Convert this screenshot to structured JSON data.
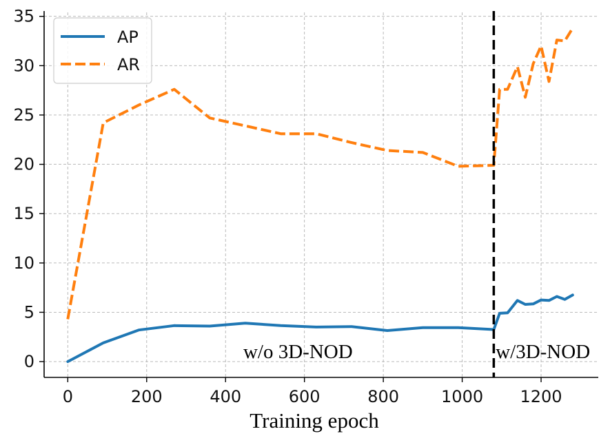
{
  "chart_data": {
    "type": "line",
    "title": "",
    "xlabel": "Training epoch",
    "ylabel": "",
    "xlim": [
      -60,
      1345
    ],
    "ylim": [
      -1.6,
      35.4
    ],
    "xticks": [
      0,
      200,
      400,
      600,
      800,
      1000,
      1200
    ],
    "yticks": [
      0,
      5,
      10,
      15,
      20,
      25,
      30,
      35
    ],
    "grid": true,
    "legend_position": "top-left",
    "series": [
      {
        "name": "AP",
        "style": "solid",
        "color": "#1f77b4",
        "x": [
          0,
          90,
          180,
          270,
          360,
          450,
          540,
          630,
          720,
          810,
          900,
          990,
          1080,
          1095,
          1115,
          1140,
          1160,
          1180,
          1200,
          1220,
          1240,
          1260,
          1280
        ],
        "y": [
          0.0,
          1.9,
          3.2,
          3.65,
          3.6,
          3.9,
          3.65,
          3.5,
          3.55,
          3.15,
          3.45,
          3.45,
          3.25,
          4.9,
          4.95,
          6.2,
          5.8,
          5.85,
          6.25,
          6.2,
          6.6,
          6.3,
          6.75
        ]
      },
      {
        "name": "AR",
        "style": "dashed",
        "color": "#ff7f0e",
        "x": [
          0,
          90,
          180,
          270,
          360,
          450,
          540,
          630,
          720,
          810,
          900,
          990,
          1080,
          1095,
          1115,
          1140,
          1160,
          1180,
          1200,
          1220,
          1240,
          1260,
          1280
        ],
        "y": [
          4.3,
          24.2,
          26.0,
          27.6,
          24.7,
          23.9,
          23.1,
          23.1,
          22.2,
          21.4,
          21.2,
          19.8,
          19.9,
          27.6,
          27.6,
          29.9,
          26.8,
          30.2,
          32.0,
          28.4,
          32.6,
          32.5,
          33.8
        ]
      }
    ],
    "vline": {
      "x": 1080,
      "style": "dashed",
      "color": "#000000"
    },
    "annotations": [
      {
        "text": "w/o 3D-NOD",
        "x": 445,
        "y": 0.35
      },
      {
        "text": "w/3D-NOD",
        "x": 1085,
        "y": 0.35
      }
    ]
  }
}
